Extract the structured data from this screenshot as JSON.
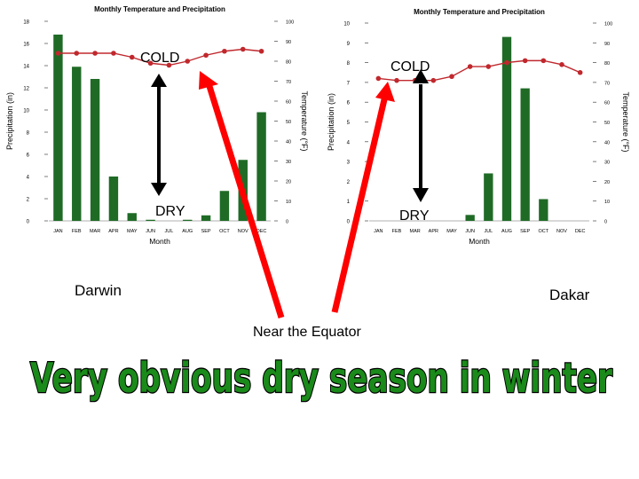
{
  "chart_data": [
    {
      "type": "bar+line",
      "title": "Monthly Temperature and Precipitation",
      "xlabel": "Month",
      "ylabel": "Precipitation (in)",
      "ylabel2": "Temperature (°F)",
      "categories": [
        "JAN",
        "FEB",
        "MAR",
        "APR",
        "MAY",
        "JUN",
        "JUL",
        "AUG",
        "SEP",
        "OCT",
        "NOV",
        "DEC"
      ],
      "ylim": [
        0,
        18
      ],
      "yticks": [
        0,
        2,
        4,
        6,
        8,
        10,
        12,
        14,
        16,
        18
      ],
      "y2lim": [
        0,
        100
      ],
      "y2ticks": [
        0,
        10,
        20,
        30,
        40,
        50,
        60,
        70,
        80,
        90,
        100
      ],
      "series": [
        {
          "name": "Precipitation",
          "kind": "bar",
          "color": "#1f6b26",
          "values": [
            16.8,
            13.9,
            12.8,
            4.0,
            0.7,
            0.1,
            0.0,
            0.1,
            0.5,
            2.7,
            5.5,
            9.8
          ]
        },
        {
          "name": "Temperature",
          "kind": "line",
          "axis": "right",
          "color": "#c0282d",
          "values": [
            84,
            84,
            84,
            84,
            82,
            79,
            78,
            80,
            83,
            85,
            86,
            85
          ]
        }
      ]
    },
    {
      "type": "bar+line",
      "title": "Monthly Temperature and Precipitation",
      "xlabel": "Month",
      "ylabel": "Precipitation (in)",
      "ylabel2": "Temperature (°F)",
      "categories": [
        "JAN",
        "FEB",
        "MAR",
        "APR",
        "MAY",
        "JUN",
        "JUL",
        "AUG",
        "SEP",
        "OCT",
        "NOV",
        "DEC"
      ],
      "ylim": [
        0,
        10
      ],
      "yticks": [
        0,
        1,
        2,
        3,
        4,
        5,
        6,
        7,
        8,
        9,
        10
      ],
      "y2lim": [
        0,
        100
      ],
      "y2ticks": [
        0,
        10,
        20,
        30,
        40,
        50,
        60,
        70,
        80,
        90,
        100
      ],
      "series": [
        {
          "name": "Precipitation",
          "kind": "bar",
          "color": "#1f6b26",
          "values": [
            0,
            0,
            0,
            0,
            0,
            0.3,
            2.4,
            9.3,
            6.7,
            1.1,
            0,
            0
          ]
        },
        {
          "name": "Temperature",
          "kind": "line",
          "axis": "right",
          "color": "#c0282d",
          "values": [
            72,
            71,
            71,
            71,
            73,
            78,
            78,
            80,
            81,
            81,
            79,
            75
          ]
        }
      ]
    }
  ],
  "annotations": {
    "cold_left": "COLD",
    "dry_left": "DRY",
    "cold_right": "COLD",
    "dry_right": "DRY",
    "city_left": "Darwin",
    "city_right": "Dakar",
    "near_equator": "Near the Equator",
    "headline": "Very obvious dry season in winter",
    "arrow_color": "#ff0000",
    "headline_color": "#1a8a1a"
  }
}
